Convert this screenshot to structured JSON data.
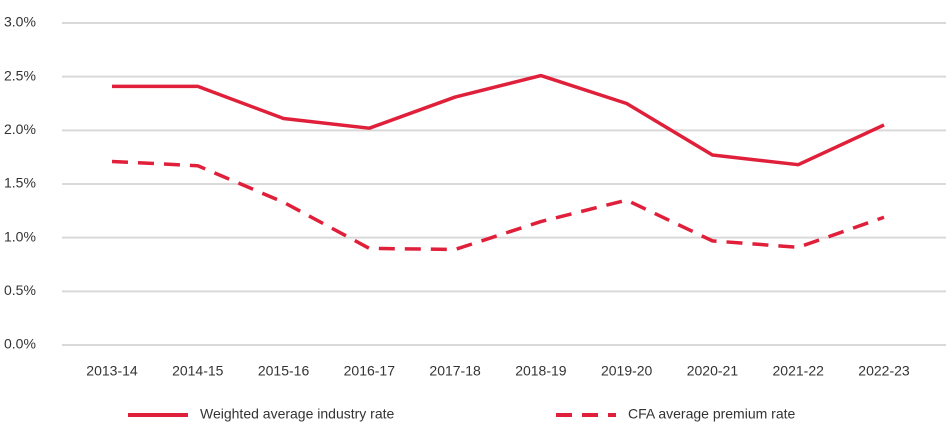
{
  "chart_data": {
    "type": "line",
    "categories": [
      "2013-14",
      "2014-15",
      "2015-16",
      "2016-17",
      "2017-18",
      "2018-19",
      "2019-20",
      "2020-21",
      "2021-22",
      "2022-23"
    ],
    "series": [
      {
        "name": "Weighted average industry rate",
        "color": "#e0203a",
        "style": "solid",
        "values": [
          2.41,
          2.41,
          2.11,
          2.02,
          2.31,
          2.51,
          2.25,
          1.77,
          1.68,
          2.05
        ]
      },
      {
        "name": "CFA average premium rate",
        "color": "#e0203a",
        "style": "dashed",
        "values": [
          1.71,
          1.67,
          1.33,
          0.9,
          0.89,
          1.15,
          1.35,
          0.97,
          0.91,
          1.19
        ]
      }
    ],
    "ylim": [
      0,
      3
    ],
    "yticks": [
      {
        "value": 0,
        "label": "0.0%"
      },
      {
        "value": 0.5,
        "label": "0.5%"
      },
      {
        "value": 1,
        "label": "1.0%"
      },
      {
        "value": 1.5,
        "label": "1.5%"
      },
      {
        "value": 2,
        "label": "2.0%"
      },
      {
        "value": 2.5,
        "label": "2.5%"
      },
      {
        "value": 3,
        "label": "3.0%"
      }
    ],
    "grid": true,
    "legend": "bottom"
  }
}
